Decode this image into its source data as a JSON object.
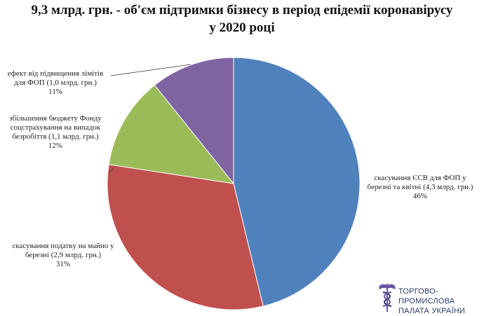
{
  "title_line1": "9,3 млрд. грн. - об'єм підтримки бізнесу в період епідемії коронавірусу",
  "title_line2": "у 2020 році",
  "chart_data": {
    "type": "pie",
    "title": "9,3 млрд. грн. - об'єм підтримки бізнесу в період епідемії коронавірусу у 2020 році",
    "start_angle_deg": 0,
    "direction": "clockwise",
    "slices": [
      {
        "line1": "скасування ЄСВ для ФОП у",
        "line2": "березні та квітні (4,3 млрд. грн.)",
        "line3": "",
        "pct_label": "46%",
        "value": 4.3,
        "color": "#4f81bd"
      },
      {
        "line1": "скасування податку на майно у",
        "line2": "березні (2,9 млрд. грн.)",
        "line3": "",
        "pct_label": "31%",
        "value": 2.9,
        "color": "#c0504d"
      },
      {
        "line1": "збільшення бюджету Фонду",
        "line2": "соцстрахування на випадок",
        "line3": "безробіття (1,1 млрд. грн.)",
        "pct_label": "12%",
        "value": 1.1,
        "color": "#9bbb59"
      },
      {
        "line1": "ефект від підвищення лімітів",
        "line2": "для ФОП (1,0 млрд. грн.)",
        "line3": "",
        "pct_label": "11%",
        "value": 1.0,
        "color": "#8064a2"
      }
    ]
  },
  "logo": {
    "line1": "ТОРГОВО-ПРОМИСЛОВА",
    "line2": "ПАЛАТА УКРАЇНИ",
    "icon": "caduceus-icon",
    "color": "#2c3a6b",
    "icon_color": "#6a57a5"
  }
}
